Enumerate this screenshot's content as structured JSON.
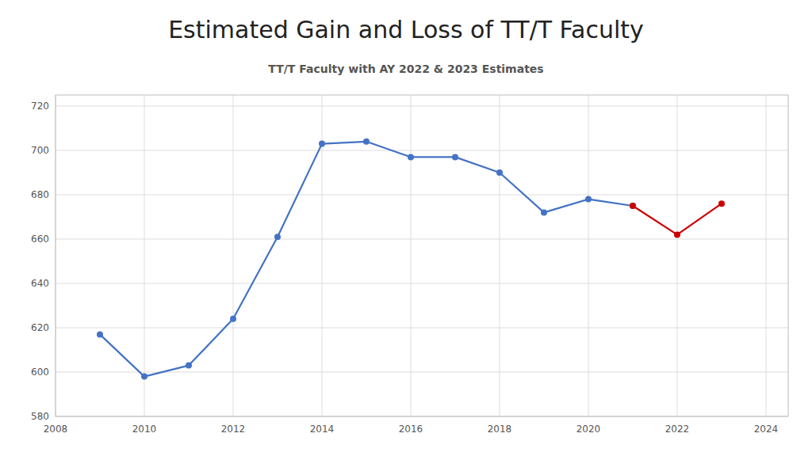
{
  "chart_data": {
    "type": "line",
    "title": "Estimated Gain and Loss of TT/T Faculty",
    "subtitle": "TT/T Faculty with AY 2022 & 2023 Estimates",
    "series": [
      {
        "x": [
          2009,
          2010,
          2011,
          2012,
          2013,
          2014,
          2015,
          2016,
          2017,
          2018,
          2019,
          2020,
          2021
        ],
        "values": [
          617,
          598,
          603,
          624,
          661,
          703,
          704,
          697,
          697,
          690,
          672,
          678,
          675
        ],
        "color": "#4472C4",
        "marker": "circle",
        "line_style": "solid"
      },
      {
        "x": [
          2021,
          2022,
          2023
        ],
        "values": [
          675,
          662,
          676
        ],
        "color": "#CC0000",
        "marker": "circle",
        "line_style": "solid"
      }
    ],
    "xlim": [
      2008,
      2024.5
    ],
    "ylim": [
      580,
      725
    ],
    "xticks": [
      2008,
      2010,
      2012,
      2014,
      2016,
      2018,
      2020,
      2022,
      2024
    ],
    "yticks": [
      580,
      600,
      620,
      640,
      660,
      680,
      700,
      720
    ],
    "grid": true
  }
}
